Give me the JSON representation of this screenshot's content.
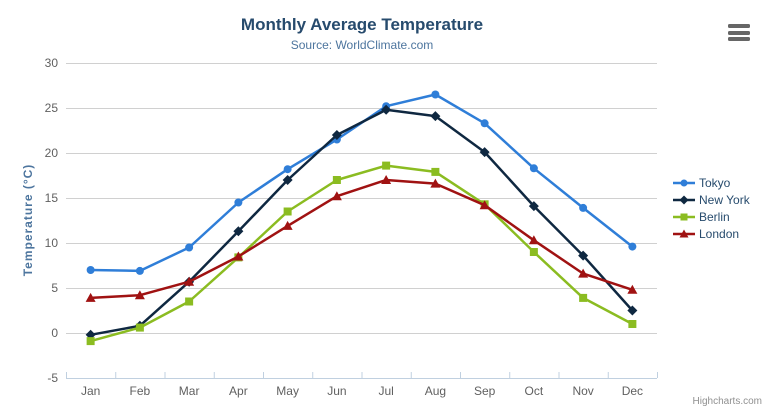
{
  "chart": {
    "title": "Monthly Average Temperature",
    "subtitle": "Source: WorldClimate.com",
    "y_axis_title": "Temperature (°C)",
    "credits": "Highcharts.com"
  },
  "export_menu": {
    "icon": "hamburger-menu"
  },
  "chart_data": {
    "type": "line",
    "title": "Monthly Average Temperature",
    "subtitle": "Source: WorldClimate.com",
    "xlabel": "",
    "ylabel": "Temperature (°C)",
    "categories": [
      "Jan",
      "Feb",
      "Mar",
      "Apr",
      "May",
      "Jun",
      "Jul",
      "Aug",
      "Sep",
      "Oct",
      "Nov",
      "Dec"
    ],
    "series": [
      {
        "name": "Tokyo",
        "color": "#2f7ed8",
        "marker": "circle",
        "values": [
          7.0,
          6.9,
          9.5,
          14.5,
          18.2,
          21.5,
          25.2,
          26.5,
          23.3,
          18.3,
          13.9,
          9.6
        ]
      },
      {
        "name": "New York",
        "color": "#0f2841",
        "marker": "diamond",
        "values": [
          -0.2,
          0.8,
          5.7,
          11.3,
          17.0,
          22.0,
          24.8,
          24.1,
          20.1,
          14.1,
          8.6,
          2.5
        ]
      },
      {
        "name": "Berlin",
        "color": "#8bbc21",
        "marker": "square",
        "values": [
          -0.9,
          0.6,
          3.5,
          8.4,
          13.5,
          17.0,
          18.6,
          17.9,
          14.3,
          9.0,
          3.9,
          1.0
        ]
      },
      {
        "name": "London",
        "color": "#a01212",
        "marker": "triangle",
        "values": [
          3.9,
          4.2,
          5.7,
          8.5,
          11.9,
          15.2,
          17.0,
          16.6,
          14.2,
          10.3,
          6.6,
          4.8
        ]
      }
    ],
    "ylim": [
      -5,
      30
    ],
    "ytick_step": 5,
    "grid": true,
    "legend_position": "right",
    "styles": {
      "grid_color": "#d0d0d0",
      "axis_line_color": "#c0d0e0",
      "tick_label_color": "#606060",
      "title_color": "#274b6d",
      "subtitle_color": "#4d759e",
      "legend_text_color": "#274b6d",
      "credits_color": "#909090"
    }
  }
}
